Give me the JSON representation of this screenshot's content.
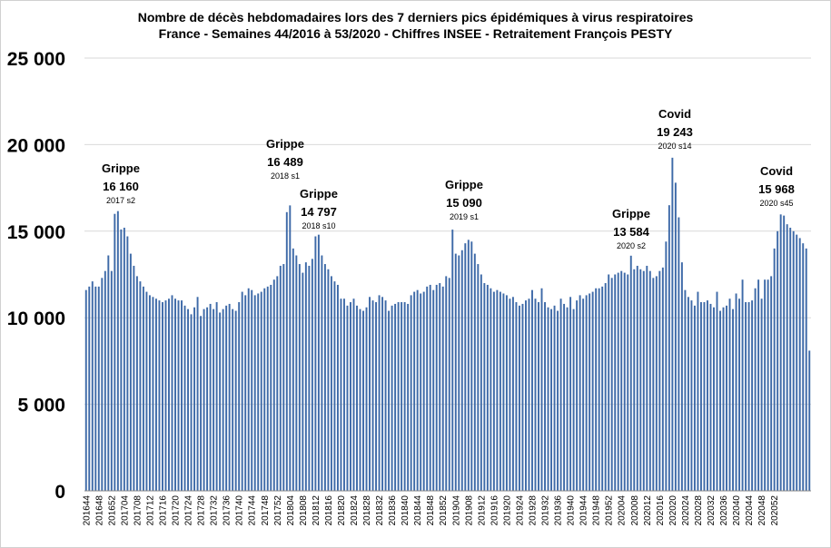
{
  "chart_data": {
    "type": "bar",
    "title": "Nombre de décès hebdomadaires lors des 7 derniers pics épidémiques à virus respiratoires",
    "subtitle": "France - Semaines 44/2016 à 53/2020 - Chiffres INSEE -  Retraitement François PESTY",
    "ylim": [
      0,
      25000
    ],
    "yticks": [
      0,
      5000,
      10000,
      15000,
      20000,
      25000
    ],
    "ytick_labels": [
      "0",
      "5 000",
      "10 000",
      "15 000",
      "20 000",
      "25 000"
    ],
    "xtick_labels": [
      "201644",
      "201648",
      "201652",
      "201704",
      "201708",
      "201712",
      "201716",
      "201720",
      "201724",
      "201728",
      "201732",
      "201736",
      "201740",
      "201744",
      "201748",
      "201752",
      "201804",
      "201808",
      "201812",
      "201816",
      "201820",
      "201824",
      "201828",
      "201832",
      "201836",
      "201840",
      "201844",
      "201848",
      "201852",
      "201904",
      "201908",
      "201912",
      "201916",
      "201920",
      "201924",
      "201928",
      "201932",
      "201936",
      "201940",
      "201944",
      "201948",
      "201952",
      "202004",
      "202008",
      "202012",
      "202016",
      "202020",
      "202024",
      "202028",
      "202032",
      "202036",
      "202040",
      "202044",
      "202048",
      "202052"
    ],
    "grid": true,
    "bar_color": "#3e6aa8",
    "values": [
      11600,
      11800,
      12100,
      11800,
      11800,
      12300,
      12700,
      13600,
      12700,
      16000,
      16160,
      15100,
      15200,
      14700,
      13700,
      13000,
      12400,
      12100,
      11800,
      11500,
      11300,
      11200,
      11100,
      11000,
      10900,
      11000,
      11100,
      11300,
      11100,
      11000,
      11000,
      10700,
      10500,
      10200,
      10600,
      11200,
      10100,
      10500,
      10600,
      10800,
      10500,
      10900,
      10300,
      10500,
      10700,
      10800,
      10500,
      10400,
      10900,
      11500,
      11300,
      11700,
      11600,
      11300,
      11400,
      11500,
      11700,
      11800,
      11900,
      12200,
      12400,
      13000,
      13100,
      16100,
      16489,
      14000,
      13600,
      13100,
      12600,
      13200,
      13000,
      13400,
      14700,
      14797,
      13600,
      13100,
      12800,
      12400,
      12100,
      11900,
      11100,
      11100,
      10700,
      10900,
      11100,
      10700,
      10500,
      10400,
      10600,
      11200,
      11000,
      10900,
      11300,
      11200,
      11000,
      10400,
      10700,
      10800,
      10900,
      10900,
      10900,
      10800,
      11300,
      11500,
      11600,
      11400,
      11500,
      11800,
      11900,
      11600,
      11900,
      12000,
      11800,
      12400,
      12300,
      15090,
      13700,
      13600,
      13900,
      14300,
      14500,
      14400,
      13700,
      13100,
      12500,
      12000,
      11900,
      11700,
      11500,
      11600,
      11500,
      11400,
      11300,
      11100,
      11200,
      10900,
      10700,
      10800,
      11000,
      11100,
      11600,
      11100,
      10900,
      11700,
      10900,
      10600,
      10500,
      10700,
      10400,
      11100,
      10800,
      10600,
      11200,
      10500,
      11000,
      11300,
      11100,
      11300,
      11400,
      11500,
      11700,
      11700,
      11800,
      12000,
      12500,
      12300,
      12500,
      12600,
      12700,
      12600,
      12500,
      13584,
      12800,
      13000,
      12800,
      12700,
      13000,
      12700,
      12300,
      12400,
      12700,
      12900,
      14400,
      16500,
      19243,
      17800,
      15800,
      13200,
      11600,
      11200,
      11000,
      10700,
      11500,
      10900,
      10900,
      11000,
      10800,
      10600,
      11500,
      10400,
      10600,
      10700,
      11100,
      10500,
      11400,
      11100,
      12200,
      10900,
      10900,
      11000,
      11700,
      12200,
      11100,
      12200,
      12200,
      12400,
      14000,
      15000,
      15968,
      15900,
      15400,
      15200,
      15000,
      14800,
      14600,
      14300,
      14000,
      8100
    ],
    "annotations": [
      {
        "line1": "Grippe",
        "line2": "16 160",
        "line3": "2017 s2"
      },
      {
        "line1": "Grippe",
        "line2": "16 489",
        "line3": "2018 s1"
      },
      {
        "line1": "Grippe",
        "line2": "14 797",
        "line3": "2018 s10"
      },
      {
        "line1": "Grippe",
        "line2": "15 090",
        "line3": "2019 s1"
      },
      {
        "line1": "Grippe",
        "line2": "13 584",
        "line3": "2020 s2"
      },
      {
        "line1": "Covid",
        "line2": "19 243",
        "line3": "2020 s14"
      },
      {
        "line1": "Covid",
        "line2": "15 968",
        "line3": "2020 s45"
      }
    ]
  }
}
